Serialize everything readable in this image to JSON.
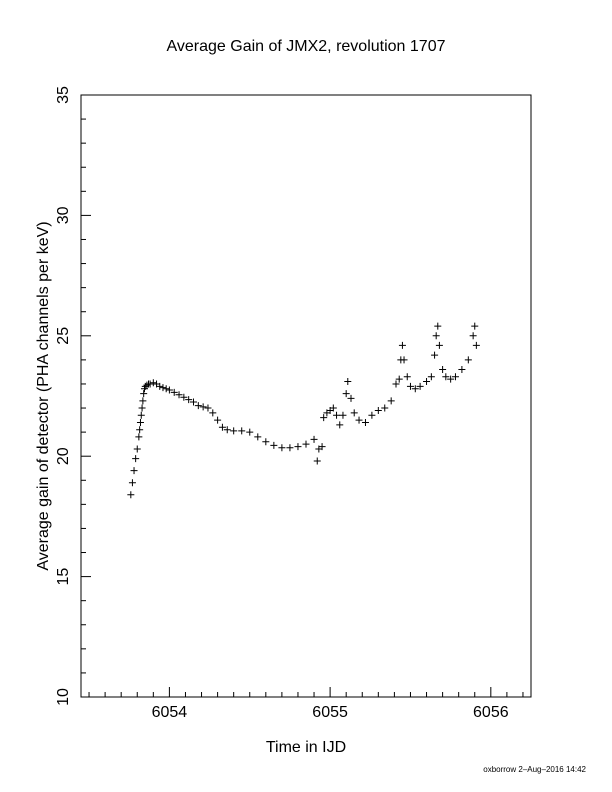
{
  "chart_data": {
    "type": "scatter",
    "title": "Average Gain of JMX2, revolution 1707",
    "xlabel": "Time in IJD",
    "ylabel": "Average gain of detector (PHA channels per keV)",
    "footer": "oxborrow  2–Aug–2016 14:42",
    "color": "#000000",
    "marker": "+",
    "xlim": [
      6053.45,
      6056.25
    ],
    "ylim": [
      10,
      35
    ],
    "xticks": [
      6054,
      6055,
      6056
    ],
    "yticks": [
      10,
      15,
      20,
      25,
      30,
      35
    ],
    "xminorticks": [
      6053.5,
      6053.6,
      6053.7,
      6053.8,
      6053.9,
      6054.1,
      6054.2,
      6054.3,
      6054.4,
      6054.5,
      6054.6,
      6054.7,
      6054.8,
      6054.9,
      6055.1,
      6055.2,
      6055.3,
      6055.4,
      6055.5,
      6055.6,
      6055.7,
      6055.8,
      6055.9,
      6056.1,
      6056.2
    ],
    "yminorticks": [
      11,
      12,
      13,
      14,
      16,
      17,
      18,
      19,
      21,
      22,
      23,
      24,
      26,
      27,
      28,
      29,
      31,
      32,
      33,
      34
    ],
    "x": [
      6053.76,
      6053.77,
      6053.78,
      6053.79,
      6053.8,
      6053.81,
      6053.815,
      6053.82,
      6053.825,
      6053.83,
      6053.835,
      6053.84,
      6053.845,
      6053.85,
      6053.86,
      6053.87,
      6053.88,
      6053.9,
      6053.92,
      6053.94,
      6053.96,
      6053.98,
      6054.0,
      6054.03,
      6054.06,
      6054.09,
      6054.12,
      6054.15,
      6054.18,
      6054.21,
      6054.24,
      6054.27,
      6054.3,
      6054.33,
      6054.36,
      6054.4,
      6054.45,
      6054.5,
      6054.55,
      6054.6,
      6054.65,
      6054.7,
      6054.75,
      6054.8,
      6054.85,
      6054.9,
      6054.92,
      6054.93,
      6054.95,
      6054.96,
      6054.98,
      6055.0,
      6055.02,
      6055.04,
      6055.06,
      6055.08,
      6055.1,
      6055.11,
      6055.13,
      6055.15,
      6055.18,
      6055.22,
      6055.26,
      6055.3,
      6055.34,
      6055.38,
      6055.41,
      6055.43,
      6055.44,
      6055.45,
      6055.46,
      6055.48,
      6055.5,
      6055.53,
      6055.56,
      6055.6,
      6055.63,
      6055.65,
      6055.66,
      6055.67,
      6055.68,
      6055.7,
      6055.72,
      6055.75,
      6055.78,
      6055.82,
      6055.86,
      6055.89,
      6055.9,
      6055.91
    ],
    "values": [
      18.4,
      18.9,
      19.4,
      19.9,
      20.3,
      20.8,
      21.1,
      21.4,
      21.7,
      22.0,
      22.3,
      22.6,
      22.8,
      22.9,
      22.95,
      23.0,
      23.0,
      23.05,
      23.0,
      22.9,
      22.85,
      22.8,
      22.75,
      22.65,
      22.55,
      22.45,
      22.35,
      22.25,
      22.1,
      22.05,
      22.0,
      21.8,
      21.5,
      21.2,
      21.1,
      21.05,
      21.05,
      21.0,
      20.8,
      20.6,
      20.45,
      20.35,
      20.35,
      20.4,
      20.5,
      20.7,
      19.8,
      20.3,
      20.4,
      21.6,
      21.8,
      21.9,
      22.0,
      21.7,
      21.3,
      21.7,
      22.6,
      23.1,
      22.4,
      21.8,
      21.5,
      21.4,
      21.7,
      21.9,
      22.0,
      22.3,
      23.0,
      23.2,
      24.0,
      24.6,
      24.0,
      23.3,
      22.9,
      22.8,
      22.9,
      23.1,
      23.3,
      24.2,
      25.0,
      25.4,
      24.6,
      23.6,
      23.3,
      23.2,
      23.3,
      23.6,
      24.0,
      25.0,
      25.4,
      24.6
    ]
  }
}
